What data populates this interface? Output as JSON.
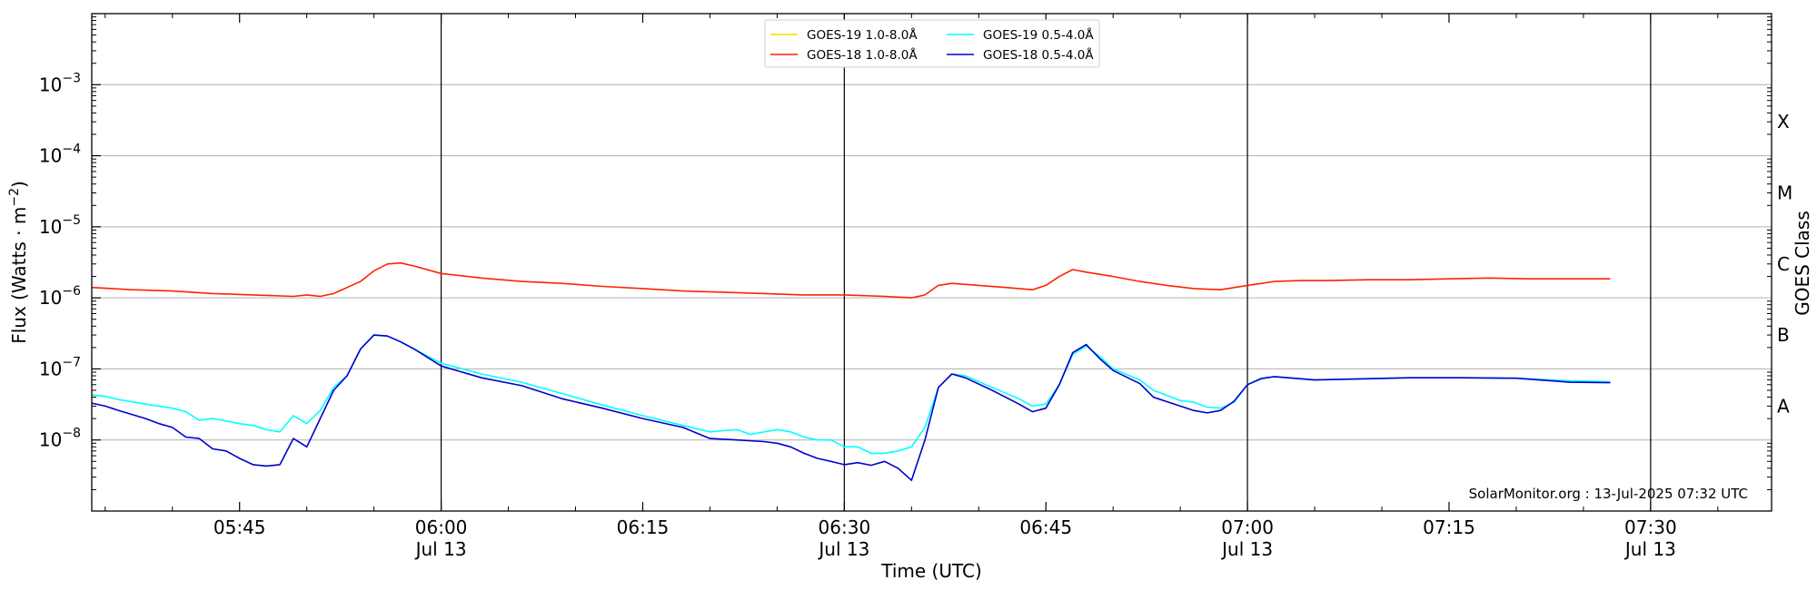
{
  "chart_data": {
    "type": "line",
    "xlabel": "Time (UTC)",
    "ylabel_main": "Flux (Watts · m",
    "ylabel_exp": "−2",
    "ylabel_close": ")",
    "right_label": "GOES Class",
    "credit": "SolarMonitor.org : 13-Jul-2025 07:32 UTC",
    "xlim": [
      "05:34",
      "07:39"
    ],
    "ylim": [
      1e-09,
      0.01
    ],
    "y_scale": "log",
    "grid": "horizontal",
    "legend_position": "top-center",
    "y_ticks": [
      {
        "base": "10",
        "exp": "−3",
        "value": 0.001
      },
      {
        "base": "10",
        "exp": "−4",
        "value": 0.0001
      },
      {
        "base": "10",
        "exp": "−5",
        "value": 1e-05
      },
      {
        "base": "10",
        "exp": "−6",
        "value": 1e-06
      },
      {
        "base": "10",
        "exp": "−7",
        "value": 1e-07
      },
      {
        "base": "10",
        "exp": "−8",
        "value": 1e-08
      }
    ],
    "x_ticks": [
      {
        "time": "05:45",
        "date": ""
      },
      {
        "time": "06:00",
        "date": "Jul 13"
      },
      {
        "time": "06:15",
        "date": ""
      },
      {
        "time": "06:30",
        "date": "Jul 13"
      },
      {
        "time": "06:45",
        "date": ""
      },
      {
        "time": "07:00",
        "date": "Jul 13"
      },
      {
        "time": "07:15",
        "date": ""
      },
      {
        "time": "07:30",
        "date": "Jul 13"
      }
    ],
    "vertical_lines": [
      "06:00",
      "06:30",
      "07:00",
      "07:30"
    ],
    "class_labels": [
      {
        "label": "X",
        "flux": 0.0003
      },
      {
        "label": "M",
        "flux": 3e-05
      },
      {
        "label": "C",
        "flux": 3e-06
      },
      {
        "label": "B",
        "flux": 3e-07
      },
      {
        "label": "A",
        "flux": 3e-08
      }
    ],
    "series": [
      {
        "name": "GOES-19 1.0-8.0Å",
        "color": "#ffd700",
        "points": []
      },
      {
        "name": "GOES-18 1.0-8.0Å",
        "color": "#ff2200",
        "points": [
          [
            "05:34",
            1.4e-06
          ],
          [
            "05:37",
            1.3e-06
          ],
          [
            "05:40",
            1.25e-06
          ],
          [
            "05:43",
            1.15e-06
          ],
          [
            "05:46",
            1.1e-06
          ],
          [
            "05:49",
            1.05e-06
          ],
          [
            "05:50",
            1.1e-06
          ],
          [
            "05:51",
            1.05e-06
          ],
          [
            "05:52",
            1.15e-06
          ],
          [
            "05:53",
            1.4e-06
          ],
          [
            "05:54",
            1.7e-06
          ],
          [
            "05:55",
            2.4e-06
          ],
          [
            "05:56",
            3e-06
          ],
          [
            "05:57",
            3.1e-06
          ],
          [
            "05:58",
            2.8e-06
          ],
          [
            "06:00",
            2.2e-06
          ],
          [
            "06:03",
            1.9e-06
          ],
          [
            "06:06",
            1.7e-06
          ],
          [
            "06:09",
            1.6e-06
          ],
          [
            "06:12",
            1.45e-06
          ],
          [
            "06:15",
            1.35e-06
          ],
          [
            "06:18",
            1.25e-06
          ],
          [
            "06:21",
            1.2e-06
          ],
          [
            "06:24",
            1.15e-06
          ],
          [
            "06:27",
            1.1e-06
          ],
          [
            "06:30",
            1.1e-06
          ],
          [
            "06:33",
            1.05e-06
          ],
          [
            "06:35",
            1e-06
          ],
          [
            "06:36",
            1.1e-06
          ],
          [
            "06:37",
            1.5e-06
          ],
          [
            "06:38",
            1.6e-06
          ],
          [
            "06:40",
            1.5e-06
          ],
          [
            "06:42",
            1.4e-06
          ],
          [
            "06:44",
            1.3e-06
          ],
          [
            "06:45",
            1.5e-06
          ],
          [
            "06:46",
            2e-06
          ],
          [
            "06:47",
            2.5e-06
          ],
          [
            "06:48",
            2.3e-06
          ],
          [
            "06:50",
            2e-06
          ],
          [
            "06:52",
            1.7e-06
          ],
          [
            "06:54",
            1.5e-06
          ],
          [
            "06:56",
            1.35e-06
          ],
          [
            "06:58",
            1.3e-06
          ],
          [
            "07:00",
            1.5e-06
          ],
          [
            "07:02",
            1.7e-06
          ],
          [
            "07:04",
            1.75e-06
          ],
          [
            "07:06",
            1.75e-06
          ],
          [
            "07:09",
            1.8e-06
          ],
          [
            "07:12",
            1.8e-06
          ],
          [
            "07:15",
            1.85e-06
          ],
          [
            "07:18",
            1.9e-06
          ],
          [
            "07:21",
            1.85e-06
          ],
          [
            "07:24",
            1.85e-06
          ],
          [
            "07:27",
            1.85e-06
          ]
        ]
      },
      {
        "name": "GOES-19 0.5-4.0Å",
        "color": "#00ffff",
        "points": [
          [
            "05:34",
            4.3e-08
          ],
          [
            "05:35",
            4.1e-08
          ],
          [
            "05:36",
            3.7e-08
          ],
          [
            "05:38",
            3.2e-08
          ],
          [
            "05:40",
            2.8e-08
          ],
          [
            "05:41",
            2.5e-08
          ],
          [
            "05:42",
            1.9e-08
          ],
          [
            "05:43",
            2e-08
          ],
          [
            "05:44",
            1.85e-08
          ],
          [
            "05:45",
            1.7e-08
          ],
          [
            "05:46",
            1.6e-08
          ],
          [
            "05:47",
            1.4e-08
          ],
          [
            "05:48",
            1.3e-08
          ],
          [
            "05:49",
            2.2e-08
          ],
          [
            "05:50",
            1.7e-08
          ],
          [
            "05:51",
            2.6e-08
          ],
          [
            "05:52",
            5.5e-08
          ],
          [
            "05:53",
            8e-08
          ],
          [
            "05:54",
            1.9e-07
          ],
          [
            "05:55",
            3e-07
          ],
          [
            "05:56",
            2.9e-07
          ],
          [
            "05:57",
            2.4e-07
          ],
          [
            "05:58",
            1.9e-07
          ],
          [
            "06:00",
            1.2e-07
          ],
          [
            "06:03",
            8.5e-08
          ],
          [
            "06:06",
            6.5e-08
          ],
          [
            "06:09",
            4.5e-08
          ],
          [
            "06:12",
            3.1e-08
          ],
          [
            "06:15",
            2.2e-08
          ],
          [
            "06:18",
            1.6e-08
          ],
          [
            "06:20",
            1.3e-08
          ],
          [
            "06:21",
            1.35e-08
          ],
          [
            "06:22",
            1.4e-08
          ],
          [
            "06:23",
            1.2e-08
          ],
          [
            "06:25",
            1.4e-08
          ],
          [
            "06:26",
            1.3e-08
          ],
          [
            "06:27",
            1.1e-08
          ],
          [
            "06:28",
            1e-08
          ],
          [
            "06:29",
            1e-08
          ],
          [
            "06:30",
            8e-09
          ],
          [
            "06:31",
            8e-09
          ],
          [
            "06:32",
            6.5e-09
          ],
          [
            "06:33",
            6.5e-09
          ],
          [
            "06:34",
            7e-09
          ],
          [
            "06:35",
            8e-09
          ],
          [
            "06:36",
            1.5e-08
          ],
          [
            "06:37",
            5.5e-08
          ],
          [
            "06:38",
            8.5e-08
          ],
          [
            "06:39",
            8e-08
          ],
          [
            "06:41",
            5.5e-08
          ],
          [
            "06:43",
            3.8e-08
          ],
          [
            "06:44",
            3e-08
          ],
          [
            "06:45",
            3.2e-08
          ],
          [
            "06:46",
            6e-08
          ],
          [
            "06:47",
            1.6e-07
          ],
          [
            "06:48",
            2.1e-07
          ],
          [
            "06:49",
            1.5e-07
          ],
          [
            "06:50",
            1e-07
          ],
          [
            "06:52",
            7e-08
          ],
          [
            "06:53",
            5e-08
          ],
          [
            "06:55",
            3.6e-08
          ],
          [
            "06:56",
            3.4e-08
          ],
          [
            "06:57",
            2.9e-08
          ],
          [
            "06:58",
            2.8e-08
          ],
          [
            "06:59",
            3.4e-08
          ],
          [
            "07:00",
            6e-08
          ],
          [
            "07:01",
            7.2e-08
          ],
          [
            "07:02",
            7.8e-08
          ],
          [
            "07:05",
            7e-08
          ],
          [
            "07:08",
            7.2e-08
          ],
          [
            "07:12",
            7.5e-08
          ],
          [
            "07:16",
            7.5e-08
          ],
          [
            "07:20",
            7.4e-08
          ],
          [
            "07:24",
            6.8e-08
          ],
          [
            "07:27",
            6.6e-08
          ]
        ]
      },
      {
        "name": "GOES-18 0.5-4.0Å",
        "color": "#0000cc",
        "points": [
          [
            "05:34",
            3.3e-08
          ],
          [
            "05:35",
            3e-08
          ],
          [
            "05:36",
            2.6e-08
          ],
          [
            "05:38",
            2e-08
          ],
          [
            "05:39",
            1.7e-08
          ],
          [
            "05:40",
            1.5e-08
          ],
          [
            "05:41",
            1.1e-08
          ],
          [
            "05:42",
            1.05e-08
          ],
          [
            "05:43",
            7.5e-09
          ],
          [
            "05:44",
            7e-09
          ],
          [
            "05:45",
            5.5e-09
          ],
          [
            "05:46",
            4.5e-09
          ],
          [
            "05:47",
            4.3e-09
          ],
          [
            "05:48",
            4.5e-09
          ],
          [
            "05:49",
            1.05e-08
          ],
          [
            "05:50",
            8e-09
          ],
          [
            "05:51",
            2e-08
          ],
          [
            "05:52",
            5e-08
          ],
          [
            "05:53",
            8e-08
          ],
          [
            "05:54",
            1.9e-07
          ],
          [
            "05:55",
            3e-07
          ],
          [
            "05:56",
            2.9e-07
          ],
          [
            "05:57",
            2.4e-07
          ],
          [
            "05:58",
            1.9e-07
          ],
          [
            "06:00",
            1.1e-07
          ],
          [
            "06:03",
            7.5e-08
          ],
          [
            "06:06",
            5.8e-08
          ],
          [
            "06:09",
            3.8e-08
          ],
          [
            "06:12",
            2.8e-08
          ],
          [
            "06:15",
            2e-08
          ],
          [
            "06:18",
            1.5e-08
          ],
          [
            "06:20",
            1.05e-08
          ],
          [
            "06:22",
            1e-08
          ],
          [
            "06:24",
            9.5e-09
          ],
          [
            "06:25",
            9e-09
          ],
          [
            "06:26",
            8e-09
          ],
          [
            "06:27",
            6.5e-09
          ],
          [
            "06:28",
            5.5e-09
          ],
          [
            "06:29",
            5e-09
          ],
          [
            "06:30",
            4.5e-09
          ],
          [
            "06:31",
            4.8e-09
          ],
          [
            "06:32",
            4.4e-09
          ],
          [
            "06:33",
            5e-09
          ],
          [
            "06:34",
            4e-09
          ],
          [
            "06:35",
            2.7e-09
          ],
          [
            "06:36",
            1e-08
          ],
          [
            "06:37",
            5.5e-08
          ],
          [
            "06:38",
            8.5e-08
          ],
          [
            "06:39",
            7.5e-08
          ],
          [
            "06:41",
            5e-08
          ],
          [
            "06:43",
            3.2e-08
          ],
          [
            "06:44",
            2.5e-08
          ],
          [
            "06:45",
            2.8e-08
          ],
          [
            "06:46",
            6e-08
          ],
          [
            "06:47",
            1.7e-07
          ],
          [
            "06:48",
            2.2e-07
          ],
          [
            "06:49",
            1.4e-07
          ],
          [
            "06:50",
            9.5e-08
          ],
          [
            "06:52",
            6.2e-08
          ],
          [
            "06:53",
            4e-08
          ],
          [
            "06:55",
            3e-08
          ],
          [
            "06:56",
            2.6e-08
          ],
          [
            "06:57",
            2.4e-08
          ],
          [
            "06:58",
            2.6e-08
          ],
          [
            "06:59",
            3.5e-08
          ],
          [
            "07:00",
            6e-08
          ],
          [
            "07:01",
            7.3e-08
          ],
          [
            "07:02",
            7.8e-08
          ],
          [
            "07:05",
            7e-08
          ],
          [
            "07:08",
            7.2e-08
          ],
          [
            "07:12",
            7.5e-08
          ],
          [
            "07:16",
            7.5e-08
          ],
          [
            "07:20",
            7.4e-08
          ],
          [
            "07:24",
            6.5e-08
          ],
          [
            "07:27",
            6.4e-08
          ]
        ]
      }
    ]
  }
}
